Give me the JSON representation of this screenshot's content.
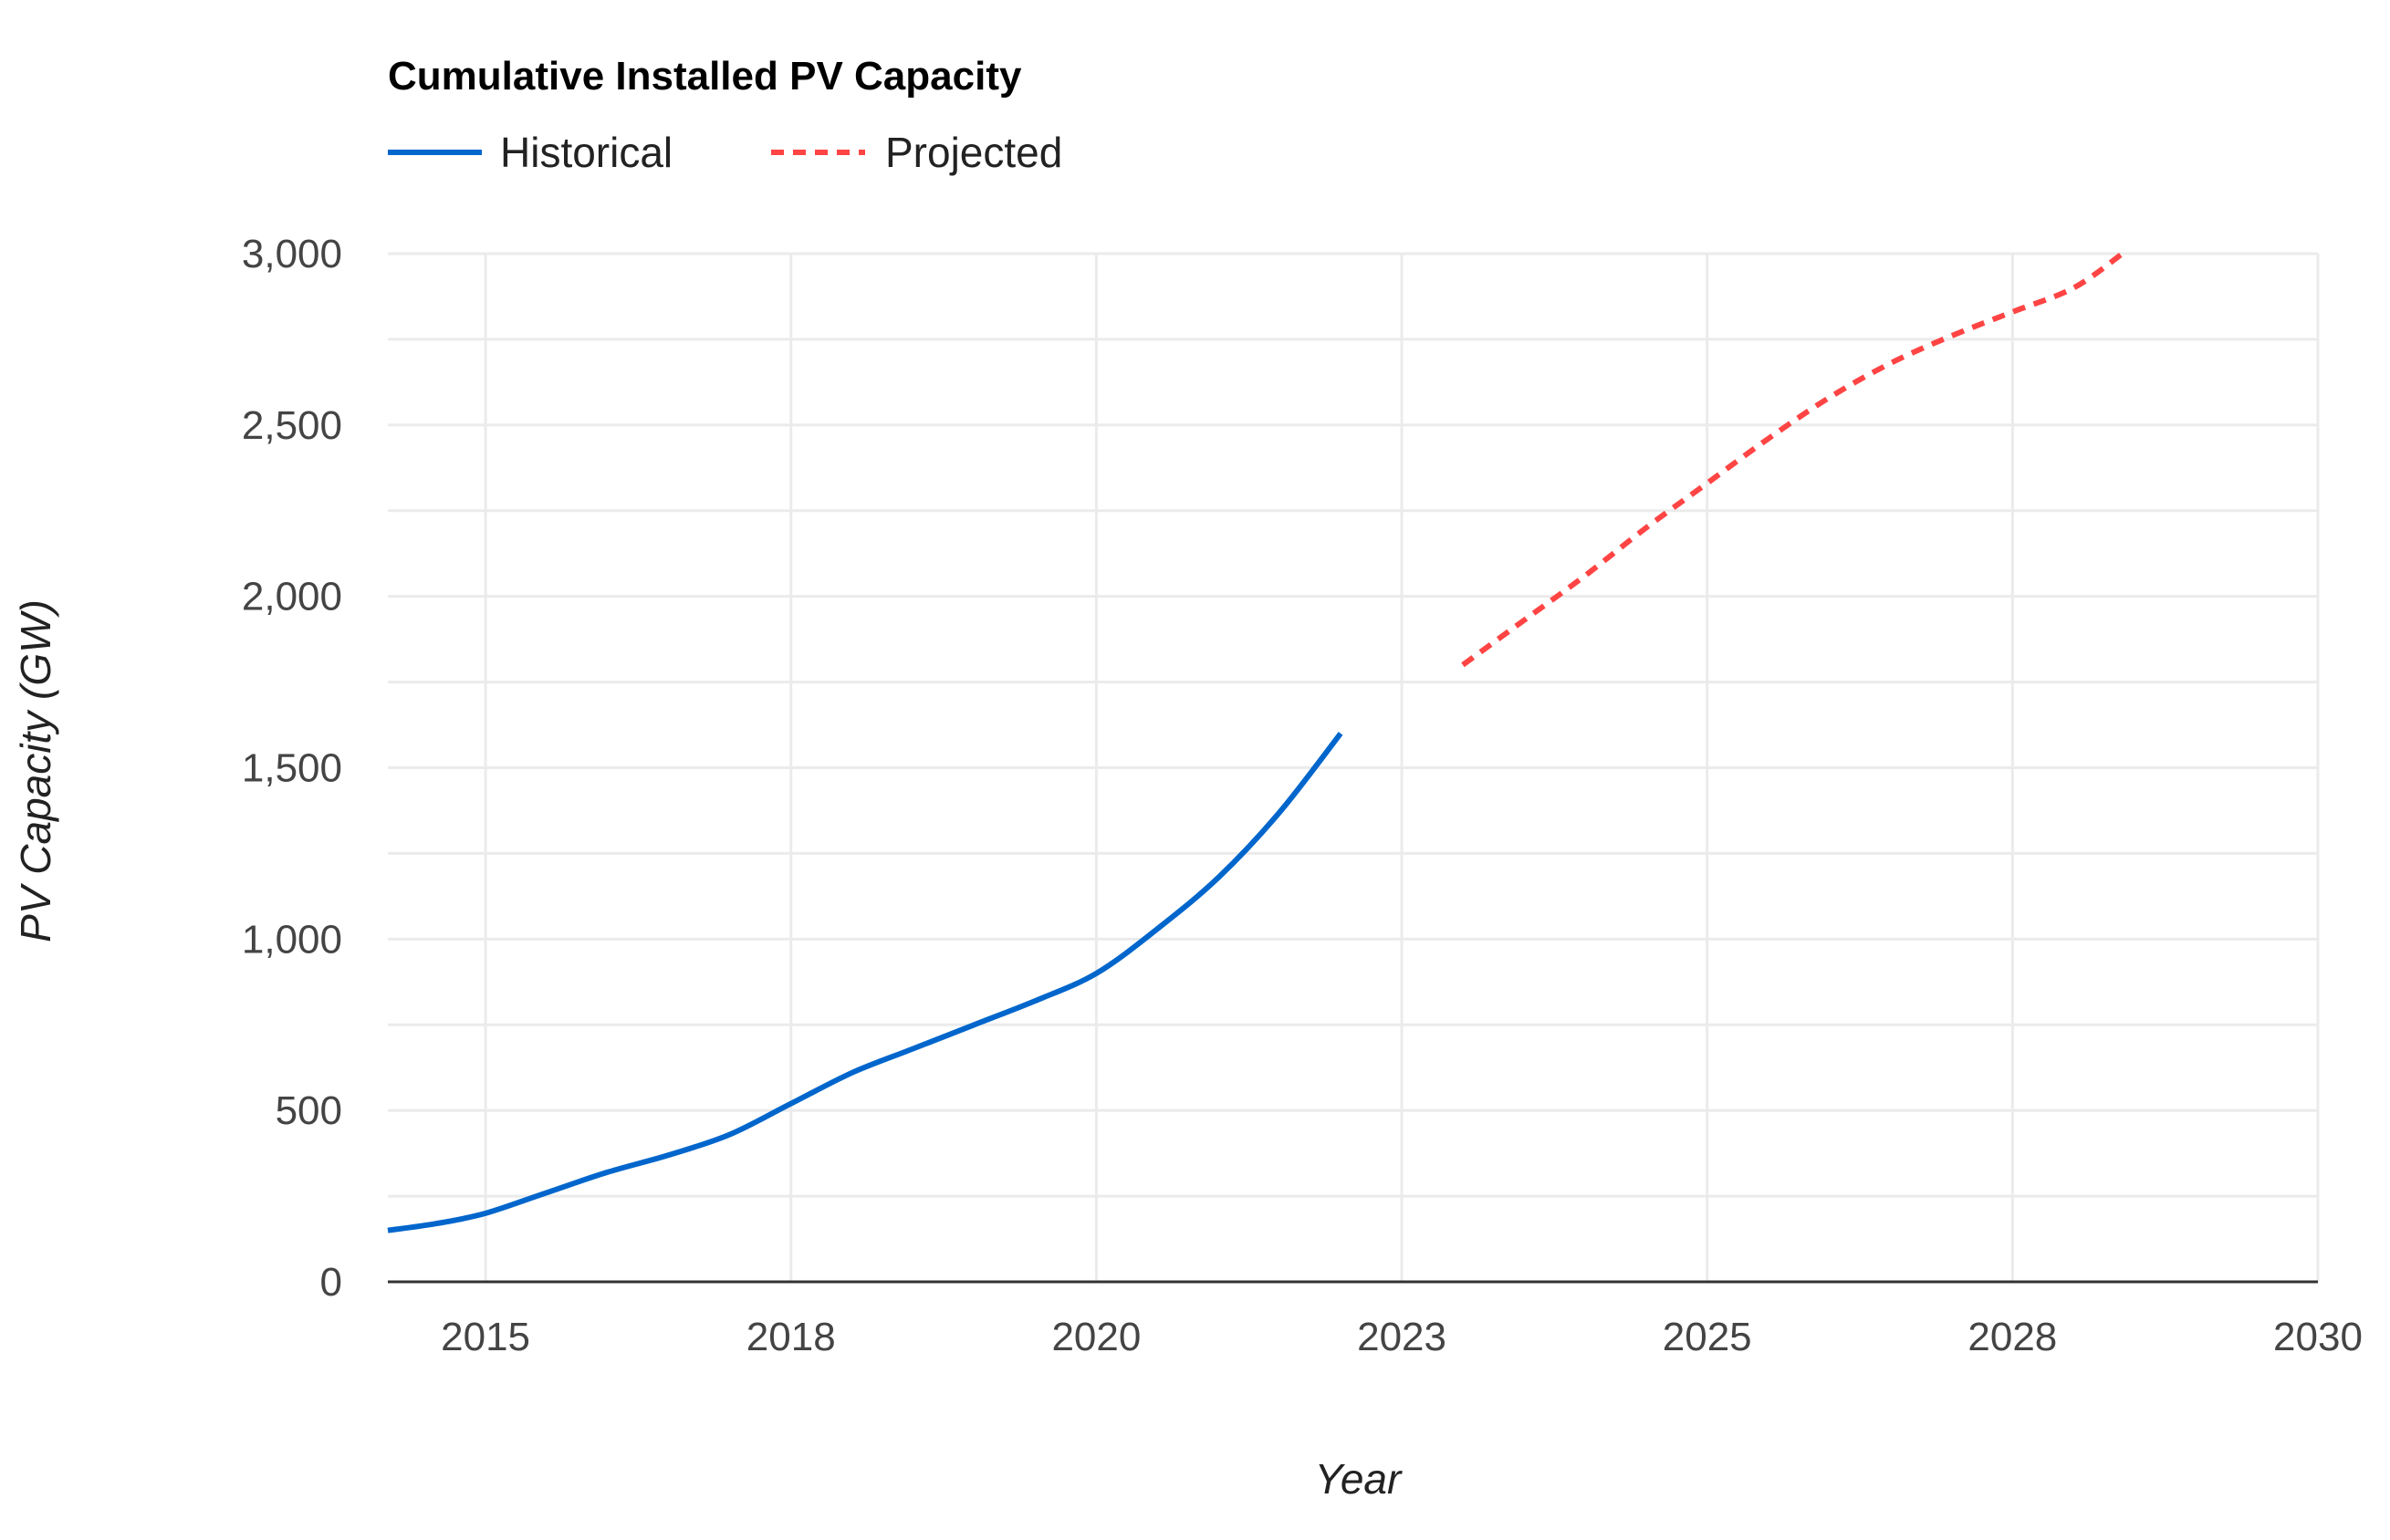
{
  "chart_data": {
    "type": "line",
    "title": "Cumulative Installed PV Capacity",
    "xlabel": "Year",
    "ylabel": "PV Capacity (GW)",
    "xlim": [
      2014.2,
      2030
    ],
    "ylim": [
      0,
      3000
    ],
    "y_ticks": [
      0,
      500,
      1000,
      1500,
      2000,
      2500,
      3000
    ],
    "y_tick_labels": [
      "0",
      "500",
      "1,000",
      "1,500",
      "2,000",
      "2,500",
      "3,000"
    ],
    "x_ticks": [
      {
        "value": 2015.0,
        "label": "2015"
      },
      {
        "value": 2017.5,
        "label": "2018"
      },
      {
        "value": 2020.0,
        "label": "2020"
      },
      {
        "value": 2022.5,
        "label": "2023"
      },
      {
        "value": 2025.0,
        "label": "2025"
      },
      {
        "value": 2027.5,
        "label": "2028"
      },
      {
        "value": 2030.0,
        "label": "2030"
      }
    ],
    "grid": true,
    "legend": "top-left",
    "series": [
      {
        "name": "Historical",
        "color": "#0066cc",
        "style": "solid",
        "points": [
          [
            2014.2,
            150
          ],
          [
            2014.6,
            170
          ],
          [
            2015.0,
            200
          ],
          [
            2015.5,
            260
          ],
          [
            2016.0,
            320
          ],
          [
            2016.5,
            370
          ],
          [
            2017.0,
            430
          ],
          [
            2017.5,
            520
          ],
          [
            2018.0,
            610
          ],
          [
            2018.5,
            680
          ],
          [
            2019.0,
            750
          ],
          [
            2019.5,
            820
          ],
          [
            2020.0,
            900
          ],
          [
            2020.5,
            1030
          ],
          [
            2021.0,
            1180
          ],
          [
            2021.5,
            1370
          ],
          [
            2022.0,
            1600
          ]
        ]
      },
      {
        "name": "Projected",
        "color": "#ff4444",
        "style": "dashed",
        "points": [
          [
            2023.0,
            1800
          ],
          [
            2023.5,
            1930
          ],
          [
            2024.0,
            2060
          ],
          [
            2024.5,
            2200
          ],
          [
            2025.0,
            2330
          ],
          [
            2025.5,
            2460
          ],
          [
            2026.0,
            2580
          ],
          [
            2026.5,
            2680
          ],
          [
            2027.0,
            2760
          ],
          [
            2027.5,
            2830
          ],
          [
            2028.0,
            2900
          ],
          [
            2028.4,
            3000
          ]
        ]
      }
    ]
  }
}
